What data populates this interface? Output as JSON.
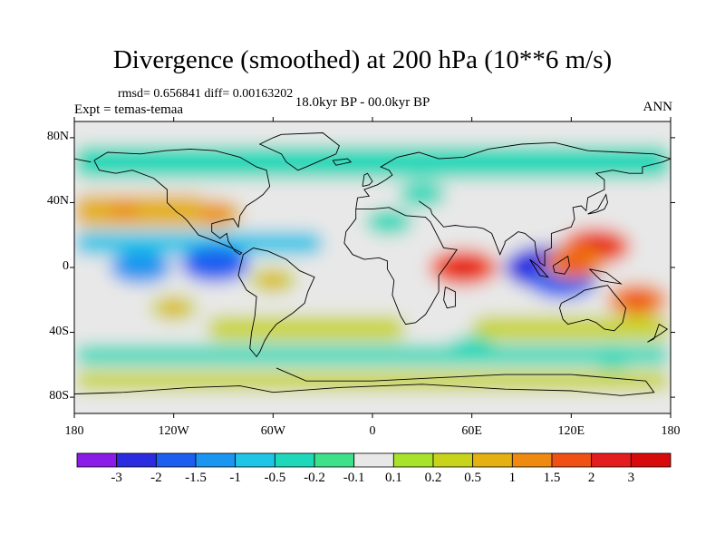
{
  "title": "Divergence (smoothed) at 200 hPa (10**6 m/s)",
  "stats_label": "rmsd= 0.656841 diff= 0.00163202",
  "experiment_label": "Expt = temas-temaa",
  "period_label": "18.0kyr BP - 00.0kyr BP",
  "season_label": "ANN",
  "chart_data": {
    "type": "heatmap",
    "projection": "cylindrical-equidistant",
    "title": "Divergence (smoothed) at 200 hPa (10**6 m/s)",
    "units": "10**6 m/s",
    "xlim": [
      -180,
      180
    ],
    "ylim": [
      -90,
      90
    ],
    "x_ticks": [
      {
        "value": -180,
        "label": "180"
      },
      {
        "value": -120,
        "label": "120W"
      },
      {
        "value": -60,
        "label": "60W"
      },
      {
        "value": 0,
        "label": "0"
      },
      {
        "value": 60,
        "label": "60E"
      },
      {
        "value": 120,
        "label": "120E"
      },
      {
        "value": 180,
        "label": "180"
      }
    ],
    "y_ticks": [
      {
        "value": 80,
        "label": "80N"
      },
      {
        "value": 40,
        "label": "40N"
      },
      {
        "value": 0,
        "label": "0"
      },
      {
        "value": -40,
        "label": "40S"
      },
      {
        "value": -80,
        "label": "80S"
      }
    ],
    "colorbar": {
      "labels": [
        "-3",
        "-2",
        "-1.5",
        "-1",
        "-0.5",
        "-0.2",
        "-0.1",
        "0.1",
        "0.2",
        "0.5",
        "1",
        "1.5",
        "2",
        "3"
      ],
      "colors": [
        "#8b1ce8",
        "#2b2be0",
        "#1c5ef0",
        "#1a95f0",
        "#1ec5e6",
        "#1fd8b9",
        "#3fe08a",
        "#e8e8e8",
        "#a8e22a",
        "#c8d41c",
        "#e4b012",
        "#ee8a10",
        "#f05014",
        "#e41e1e",
        "#d70b0b"
      ]
    },
    "features": [
      {
        "name": "equatorial east Pacific convergence",
        "lon": -95,
        "lat": 2,
        "value": -2
      },
      {
        "name": "central Pacific convergence",
        "lon": -140,
        "lat": 0,
        "value": -1.5
      },
      {
        "name": "Maritime Continent convergence",
        "lon": 105,
        "lat": 0,
        "value": -3
      },
      {
        "name": "Maritime Continent south convergence",
        "lon": 115,
        "lat": -8,
        "value": -2
      },
      {
        "name": "East Africa / Indian Ocean divergence",
        "lon": 55,
        "lat": 0,
        "value": 2
      },
      {
        "name": "western Pacific divergence",
        "lon": 135,
        "lat": 13,
        "value": 2
      },
      {
        "name": "New Guinea divergence",
        "lon": 122,
        "lat": 3,
        "value": 1.5
      },
      {
        "name": "Amazon divergence",
        "lon": -60,
        "lat": -8,
        "value": 0.5
      },
      {
        "name": "North America divergence",
        "lon": -95,
        "lat": 33,
        "value": 1
      },
      {
        "name": "North Pacific divergence",
        "lon": -150,
        "lat": 35,
        "value": 1
      },
      {
        "name": "South Pacific divergence",
        "lon": -120,
        "lat": -25,
        "value": 0.5
      },
      {
        "name": "South Pacific west divergence",
        "lon": 160,
        "lat": -20,
        "value": 1.5
      },
      {
        "name": "North Africa convergence",
        "lon": 10,
        "lat": 28,
        "value": -0.5
      },
      {
        "name": "Mediterranean convergence",
        "lon": 30,
        "lat": 45,
        "value": -0.5
      },
      {
        "name": "Southern Ocean convergence",
        "lon": 60,
        "lat": -50,
        "value": -0.5
      },
      {
        "name": "Southern Ocean east convergence",
        "lon": 145,
        "lat": -55,
        "value": -0.5
      }
    ]
  }
}
